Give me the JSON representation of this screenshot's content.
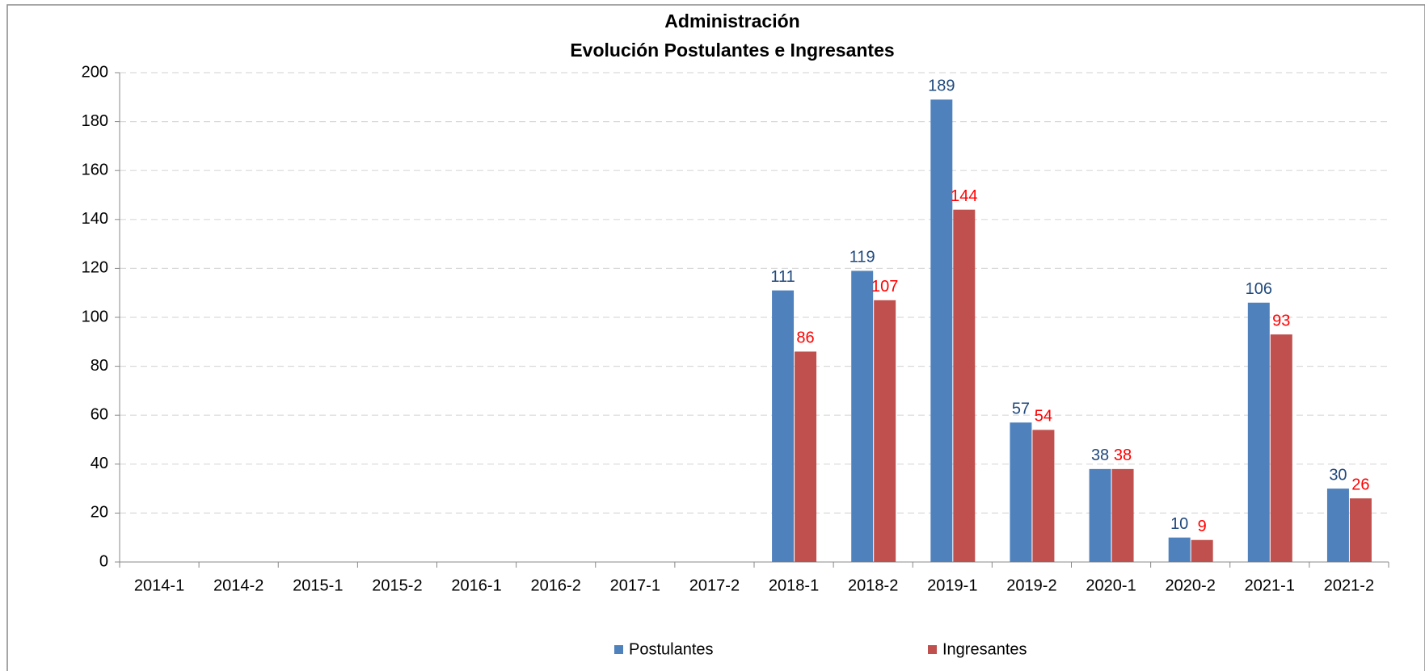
{
  "chart_data": {
    "type": "bar",
    "title": "Administración",
    "subtitle": "Evolución Postulantes e Ingresantes",
    "categories": [
      "2014-1",
      "2014-2",
      "2015-1",
      "2015-2",
      "2016-1",
      "2016-2",
      "2017-1",
      "2017-2",
      "2018-1",
      "2018-2",
      "2019-1",
      "2019-2",
      "2020-1",
      "2020-2",
      "2021-1",
      "2021-2"
    ],
    "series": [
      {
        "name": "Postulantes",
        "color": "#4f81bd",
        "label_color": "#1f497d",
        "values": [
          null,
          null,
          null,
          null,
          null,
          null,
          null,
          null,
          111,
          119,
          189,
          57,
          38,
          10,
          106,
          30
        ]
      },
      {
        "name": "Ingresantes",
        "color": "#c0504d",
        "label_color": "#ff0000",
        "values": [
          null,
          null,
          null,
          null,
          null,
          null,
          null,
          null,
          86,
          107,
          144,
          54,
          38,
          9,
          93,
          26
        ]
      }
    ],
    "ylim": [
      0,
      200
    ],
    "yticks": [
      0,
      20,
      40,
      60,
      80,
      100,
      120,
      140,
      160,
      180,
      200
    ],
    "grid": true,
    "legend": "bottom"
  }
}
